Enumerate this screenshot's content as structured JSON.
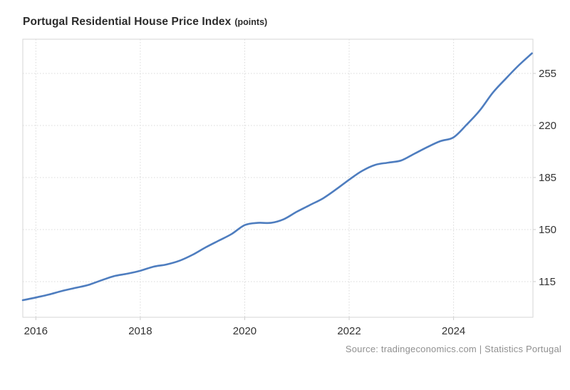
{
  "title": {
    "main": "Portugal Residential House Price Index",
    "unit": "(points)"
  },
  "source": "Source: tradingeconomics.com | Statistics Portugal",
  "colors": {
    "line": "#4e7dbf",
    "grid": "#d9d9d9",
    "plot_border": "#d6d6d6",
    "tick": "#cccccc",
    "axis_label": "#333333",
    "title": "#2b2b2b",
    "source_text": "#909090",
    "background": "#ffffff"
  },
  "chart_data": {
    "type": "line",
    "title": "Portugal Residential House Price Index (points)",
    "series_name": "Residential House Price Index",
    "xlabel": "",
    "ylabel": "points",
    "grid": true,
    "legend": false,
    "xlim": [
      2015.75,
      2025.52
    ],
    "ylim": [
      91,
      278
    ],
    "x_ticks": [
      2016,
      2018,
      2020,
      2022,
      2024
    ],
    "y_ticks": [
      115,
      150,
      185,
      220,
      255
    ],
    "x": [
      2015.75,
      2016.0,
      2016.25,
      2016.5,
      2016.75,
      2017.0,
      2017.25,
      2017.5,
      2017.75,
      2018.0,
      2018.25,
      2018.5,
      2018.75,
      2019.0,
      2019.25,
      2019.5,
      2019.75,
      2020.0,
      2020.25,
      2020.5,
      2020.75,
      2021.0,
      2021.25,
      2021.5,
      2021.75,
      2022.0,
      2022.25,
      2022.5,
      2022.75,
      2023.0,
      2023.25,
      2023.5,
      2023.75,
      2024.0,
      2024.25,
      2024.5,
      2024.75,
      2025.0,
      2025.25,
      2025.5
    ],
    "values": [
      102.5,
      104.3,
      106.3,
      108.7,
      110.7,
      112.7,
      115.8,
      118.7,
      120.3,
      122.3,
      125.0,
      126.5,
      129.0,
      133.0,
      138.0,
      142.5,
      147.0,
      153.0,
      154.5,
      154.5,
      157.0,
      162.0,
      166.5,
      171.0,
      177.0,
      183.5,
      189.5,
      193.5,
      195.0,
      196.5,
      201.0,
      205.5,
      209.5,
      212.0,
      220.5,
      230.0,
      242.0,
      251.5,
      260.5,
      268.5
    ]
  }
}
